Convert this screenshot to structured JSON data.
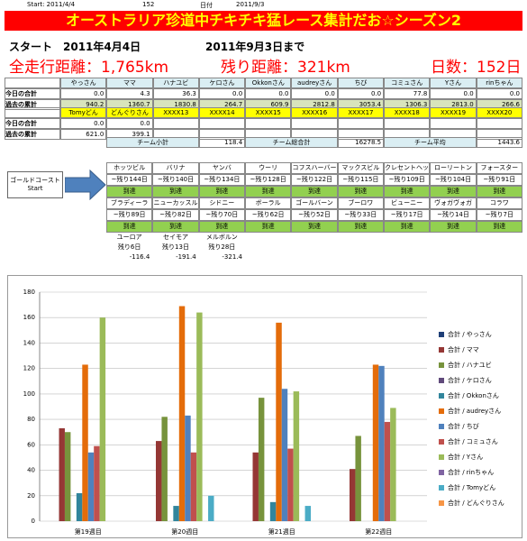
{
  "meta": [
    "Start: 2011/4/4",
    "152",
    "日付",
    "2011/9/3"
  ],
  "header": {
    "title": "オーストラリア珍道中チキチキ猛レース集計だお☆シーズン2",
    "start": "スタート　2011年4月4日",
    "end": "2011年9月3日まで",
    "total": "全走行距離：1,765km",
    "remain": "残り距離：321km",
    "days": "日数：152日"
  },
  "table": {
    "header": [
      "やっさん",
      "ママ",
      "ハナユビ",
      "ケロさん",
      "Okkonさん",
      "audreyさん",
      "ちび",
      "コミュさん",
      "Yさん",
      "rinちゃん"
    ],
    "rows": [
      {
        "label": "今日の合計",
        "cells": [
          "0.0",
          "4.3",
          "36.3",
          "0.0",
          "0.0",
          "0.0",
          "0.0",
          "77.8",
          "0.0",
          "0.0"
        ]
      },
      {
        "label": "過去の累計",
        "cells": [
          "940.2",
          "1360.7",
          "1830.8",
          "264.7",
          "609.9",
          "2812.8",
          "3053.4",
          "1306.3",
          "2813.0",
          "266.6"
        ]
      }
    ]
  },
  "table2": {
    "header": [
      "Tomyどん",
      "どんぐりさん",
      "XXXX13",
      "XXXX14",
      "XXXX15",
      "XXXX16",
      "XXXX17",
      "XXXX18",
      "XXXX19",
      "XXXX20"
    ],
    "rows": [
      {
        "label": "今日の合計",
        "cells": [
          "0.0",
          "0.0"
        ]
      },
      {
        "label": "過去の累計",
        "cells": [
          "621.0",
          "399.1"
        ]
      }
    ]
  },
  "summary": [
    {
      "label": "チーム小計",
      "value": "118.4"
    },
    {
      "label": "チーム総合計",
      "value": "16278.5"
    },
    {
      "label": "チーム平均",
      "value": "1443.6"
    }
  ],
  "route": {
    "start": [
      "ゴールドコースト",
      "Start"
    ],
    "stops": [
      {
        "name": "ホッツビル",
        "remain": "~残り144日",
        "status": "到達"
      },
      {
        "name": "バリナ",
        "remain": "~残り140日",
        "status": "到達"
      },
      {
        "name": "ヤンバ",
        "remain": "~残り134日",
        "status": "到達"
      },
      {
        "name": "ウーリ",
        "remain": "~残り128日",
        "status": "到達"
      },
      {
        "name": "コフスハーバー",
        "remain": "~残り122日",
        "status": "到達"
      },
      {
        "name": "マックスビル",
        "remain": "~残り115日",
        "status": "到達"
      },
      {
        "name": "クレセントヘッド",
        "remain": "~残り109日",
        "status": "到達"
      },
      {
        "name": "ローリートン",
        "remain": "~残り104日",
        "status": "到達"
      },
      {
        "name": "フォースター",
        "remain": "~残り91日",
        "status": "到達"
      },
      {
        "name": "ブラディーラ",
        "remain": "~残り89日",
        "status": "到達"
      },
      {
        "name": "ニューカッスル",
        "remain": "~残り82日",
        "status": "到達"
      },
      {
        "name": "シドニー",
        "remain": "~残り70日",
        "status": "到達"
      },
      {
        "name": "ボーラル",
        "remain": "~残り62日",
        "status": "到達"
      },
      {
        "name": "ゴールバーン",
        "remain": "~残り52日",
        "status": "到達"
      },
      {
        "name": "ブーロワ",
        "remain": "~残り33日",
        "status": "到達"
      },
      {
        "name": "ビューニー",
        "remain": "~残り17日",
        "status": "到達"
      },
      {
        "name": "ヴォガヴォガ",
        "remain": "~残り14日",
        "status": "到達"
      },
      {
        "name": "コラワ",
        "remain": "~残り7日",
        "status": "到達"
      },
      {
        "name": "ユーロア",
        "remain": "残り6日",
        "status": "-116.4"
      },
      {
        "name": "セイモア",
        "remain": "残り13日",
        "status": "-191.4"
      },
      {
        "name": "メルボルン",
        "remain": "残り28日",
        "status": "-321.4"
      }
    ]
  },
  "chart_data": {
    "type": "bar",
    "categories": [
      "第19週目",
      "第20週目",
      "第21週目",
      "第22週目"
    ],
    "ylim": [
      0,
      180
    ],
    "yticks": [
      0,
      20,
      40,
      60,
      80,
      100,
      120,
      140,
      160,
      180
    ],
    "grid": true,
    "series": [
      {
        "name": "合計 / やっさん",
        "color": "#1f3f77",
        "values": [
          0,
          0,
          0,
          0
        ]
      },
      {
        "name": "合計 / ママ",
        "color": "#953735",
        "values": [
          73,
          63,
          54,
          41
        ]
      },
      {
        "name": "合計 / ハナユビ",
        "color": "#77933c",
        "values": [
          70,
          82,
          97,
          67
        ]
      },
      {
        "name": "合計 / ケロさん",
        "color": "#604a7b",
        "values": [
          0,
          0,
          0,
          0
        ]
      },
      {
        "name": "合計 / Okkonさん",
        "color": "#31859c",
        "values": [
          22,
          12,
          15,
          0
        ]
      },
      {
        "name": "合計 / audreyさん",
        "color": "#e46c0a",
        "values": [
          123,
          169,
          156,
          123
        ]
      },
      {
        "name": "合計 / ちび",
        "color": "#4f81bd",
        "values": [
          54,
          83,
          104,
          122
        ]
      },
      {
        "name": "合計 / コミュさん",
        "color": "#c0504d",
        "values": [
          59,
          54,
          57,
          78
        ]
      },
      {
        "name": "合計 / Yさん",
        "color": "#9bbb59",
        "values": [
          160,
          164,
          102,
          89
        ]
      },
      {
        "name": "合計 / rinちゃん",
        "color": "#8064a2",
        "values": [
          0,
          0,
          0,
          0
        ]
      },
      {
        "name": "合計 / Tomyどん",
        "color": "#4bacc6",
        "values": [
          0,
          20,
          12,
          0
        ]
      },
      {
        "name": "合計 / どんぐりさん",
        "color": "#f79646",
        "values": [
          0,
          0,
          0,
          0
        ]
      }
    ]
  }
}
